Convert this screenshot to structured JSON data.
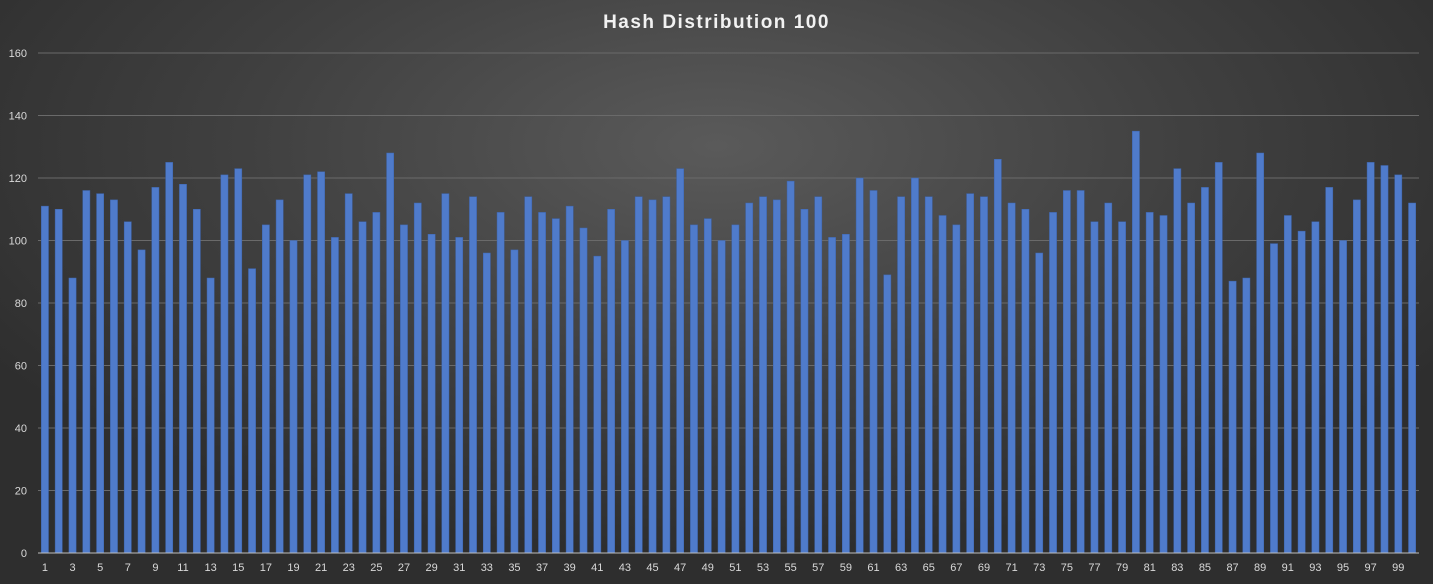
{
  "chart_data": {
    "type": "bar",
    "title": "Hash Distribution  100",
    "xlabel": "",
    "ylabel": "",
    "ylim": [
      0,
      160
    ],
    "yticks": [
      0,
      20,
      40,
      60,
      80,
      100,
      120,
      140,
      160
    ],
    "grid": true,
    "legend": "none",
    "bar_color": "#4f7bcb",
    "categories": [
      "1",
      "2",
      "3",
      "4",
      "5",
      "6",
      "7",
      "8",
      "9",
      "10",
      "11",
      "12",
      "13",
      "14",
      "15",
      "16",
      "17",
      "18",
      "19",
      "20",
      "21",
      "22",
      "23",
      "24",
      "25",
      "26",
      "27",
      "28",
      "29",
      "30",
      "31",
      "32",
      "33",
      "34",
      "35",
      "36",
      "37",
      "38",
      "39",
      "40",
      "41",
      "42",
      "43",
      "44",
      "45",
      "46",
      "47",
      "48",
      "49",
      "50",
      "51",
      "52",
      "53",
      "54",
      "55",
      "56",
      "57",
      "58",
      "59",
      "60",
      "61",
      "62",
      "63",
      "64",
      "65",
      "66",
      "67",
      "68",
      "69",
      "70",
      "71",
      "72",
      "73",
      "74",
      "75",
      "76",
      "77",
      "78",
      "79",
      "80",
      "81",
      "82",
      "83",
      "84",
      "85",
      "86",
      "87",
      "88",
      "89",
      "90",
      "91",
      "92",
      "93",
      "94",
      "95",
      "96",
      "97",
      "98",
      "99",
      "100"
    ],
    "shown_x_labels": [
      "1",
      "3",
      "5",
      "7",
      "9",
      "11",
      "13",
      "15",
      "17",
      "19",
      "21",
      "23",
      "25",
      "27",
      "29",
      "31",
      "33",
      "35",
      "37",
      "39",
      "41",
      "43",
      "45",
      "47",
      "49",
      "51",
      "53",
      "55",
      "57",
      "59",
      "61",
      "63",
      "65",
      "67",
      "69",
      "71",
      "73",
      "75",
      "77",
      "79",
      "81",
      "83",
      "85",
      "87",
      "89",
      "91",
      "93",
      "95",
      "97",
      "99"
    ],
    "values": [
      111,
      110,
      88,
      116,
      115,
      113,
      106,
      97,
      117,
      125,
      118,
      110,
      88,
      121,
      123,
      91,
      105,
      113,
      100,
      121,
      122,
      101,
      115,
      106,
      109,
      128,
      105,
      112,
      102,
      115,
      101,
      114,
      96,
      109,
      97,
      114,
      109,
      107,
      111,
      104,
      95,
      110,
      100,
      114,
      113,
      114,
      123,
      105,
      107,
      100,
      105,
      112,
      114,
      113,
      119,
      110,
      114,
      101,
      102,
      120,
      116,
      89,
      114,
      120,
      114,
      108,
      105,
      115,
      114,
      126,
      112,
      110,
      96,
      109,
      116,
      116,
      106,
      112,
      106,
      135,
      109,
      108,
      123,
      112,
      117,
      125,
      87,
      88,
      128,
      99,
      108,
      103,
      106,
      117,
      100,
      113,
      125,
      124,
      121,
      112
    ]
  }
}
